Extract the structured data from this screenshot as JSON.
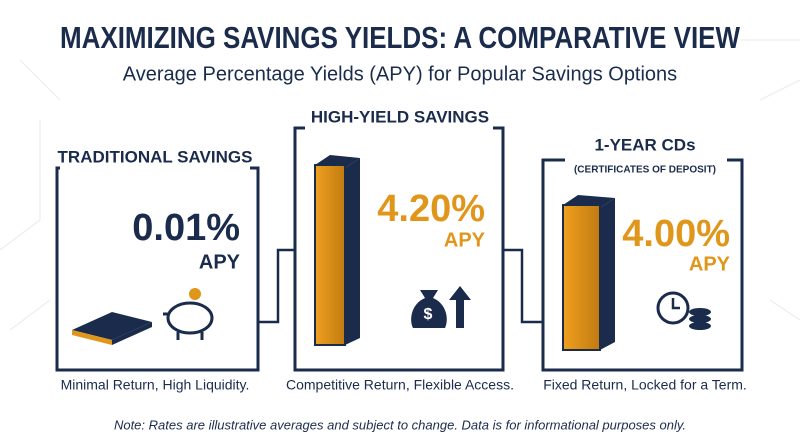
{
  "header": {
    "title": "MAXIMIZING SAVINGS YIELDS: A COMPARATIVE VIEW",
    "subtitle": "Average Percentage Yields (APY) for Popular Savings Options"
  },
  "panels": [
    {
      "label": "TRADITIONAL SAVINGS",
      "rate": "0.01%",
      "unit": "APY",
      "caption": "Minimal Return, High Liquidity."
    },
    {
      "label": "HIGH-YIELD SAVINGS",
      "rate": "4.20%",
      "unit": "APY",
      "caption": "Competitive Return, Flexible Access."
    },
    {
      "label": "1-YEAR CDs",
      "sublabel": "(CERTIFICATES OF DEPOSIT)",
      "rate": "4.00%",
      "unit": "APY",
      "caption": "Fixed Return, Locked for a Term."
    }
  ],
  "note": "Note: Rates are illustrative averages and subject to change. Data is for informational purposes only."
}
